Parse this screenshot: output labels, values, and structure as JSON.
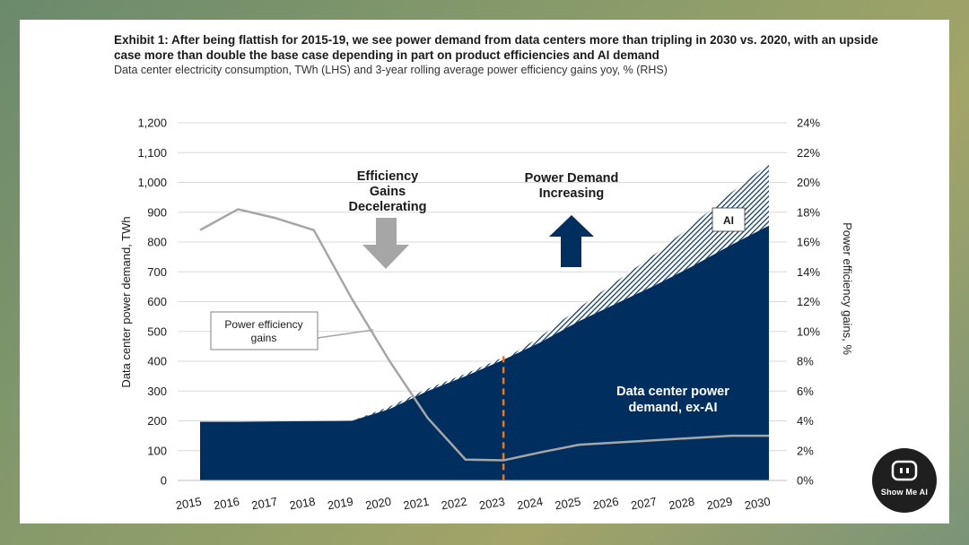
{
  "header": {
    "title": "Exhibit 1: After being flattish for 2015-19, we see power demand from data centers more than tripling in 2030 vs. 2020, with an upside case more than double the base case depending in part on product efficiencies and AI demand",
    "subtitle": "Data center electricity consumption, TWh (LHS) and 3-year rolling average power efficiency gains yoy, % (RHS)"
  },
  "chart_data": {
    "type": "area",
    "categories": [
      "2015",
      "2016",
      "2017",
      "2018",
      "2019",
      "2020",
      "2021",
      "2022",
      "2023",
      "2024",
      "2025",
      "2026",
      "2027",
      "2028",
      "2029",
      "2030"
    ],
    "series": [
      {
        "name": "Data center power demand, ex-AI",
        "axis": "left",
        "kind": "area",
        "values": [
          197,
          197,
          198,
          199,
          200,
          240,
          300,
          350,
          405,
          465,
          535,
          595,
          655,
          720,
          790,
          855
        ]
      },
      {
        "name": "AI",
        "axis": "left",
        "kind": "stacked-area",
        "values": [
          0,
          0,
          0,
          0,
          0,
          0,
          0,
          0,
          0,
          20,
          45,
          75,
          105,
          140,
          175,
          210
        ]
      },
      {
        "name": "Power efficiency gains",
        "axis": "right",
        "kind": "line",
        "values": [
          16.8,
          18.2,
          17.6,
          16.8,
          12.2,
          8.0,
          4.2,
          1.4,
          1.35,
          1.9,
          2.4,
          2.55,
          2.7,
          2.85,
          3.0,
          3.0
        ]
      }
    ],
    "ylabel": "Data center power demand, TWh",
    "y2label": "Power efficiency gains, %",
    "ylim": [
      0,
      1200
    ],
    "y2lim": [
      0,
      24
    ],
    "yticks": [
      "0",
      "100",
      "200",
      "300",
      "400",
      "500",
      "600",
      "700",
      "800",
      "900",
      "1,000",
      "1,100",
      "1,200"
    ],
    "y2ticks": [
      "0%",
      "2%",
      "4%",
      "6%",
      "8%",
      "10%",
      "12%",
      "14%",
      "16%",
      "18%",
      "20%",
      "22%",
      "24%"
    ],
    "divider_year": "2023",
    "annotations": {
      "efficiency": [
        "Efficiency",
        "Gains",
        "Decelerating"
      ],
      "demand": [
        "Power Demand",
        "Increasing"
      ],
      "ai_label": "AI",
      "exai": [
        "Data center power",
        "demand, ex-AI"
      ],
      "callout": [
        "Power  efficiency",
        "gains"
      ]
    },
    "colors": {
      "area": "#002f5f",
      "line": "#a6a6a6",
      "arrow_down": "#a6a6a6",
      "arrow_up": "#002f5f",
      "divider": "#e87722"
    }
  },
  "logo": {
    "text": "Show Me AI"
  }
}
